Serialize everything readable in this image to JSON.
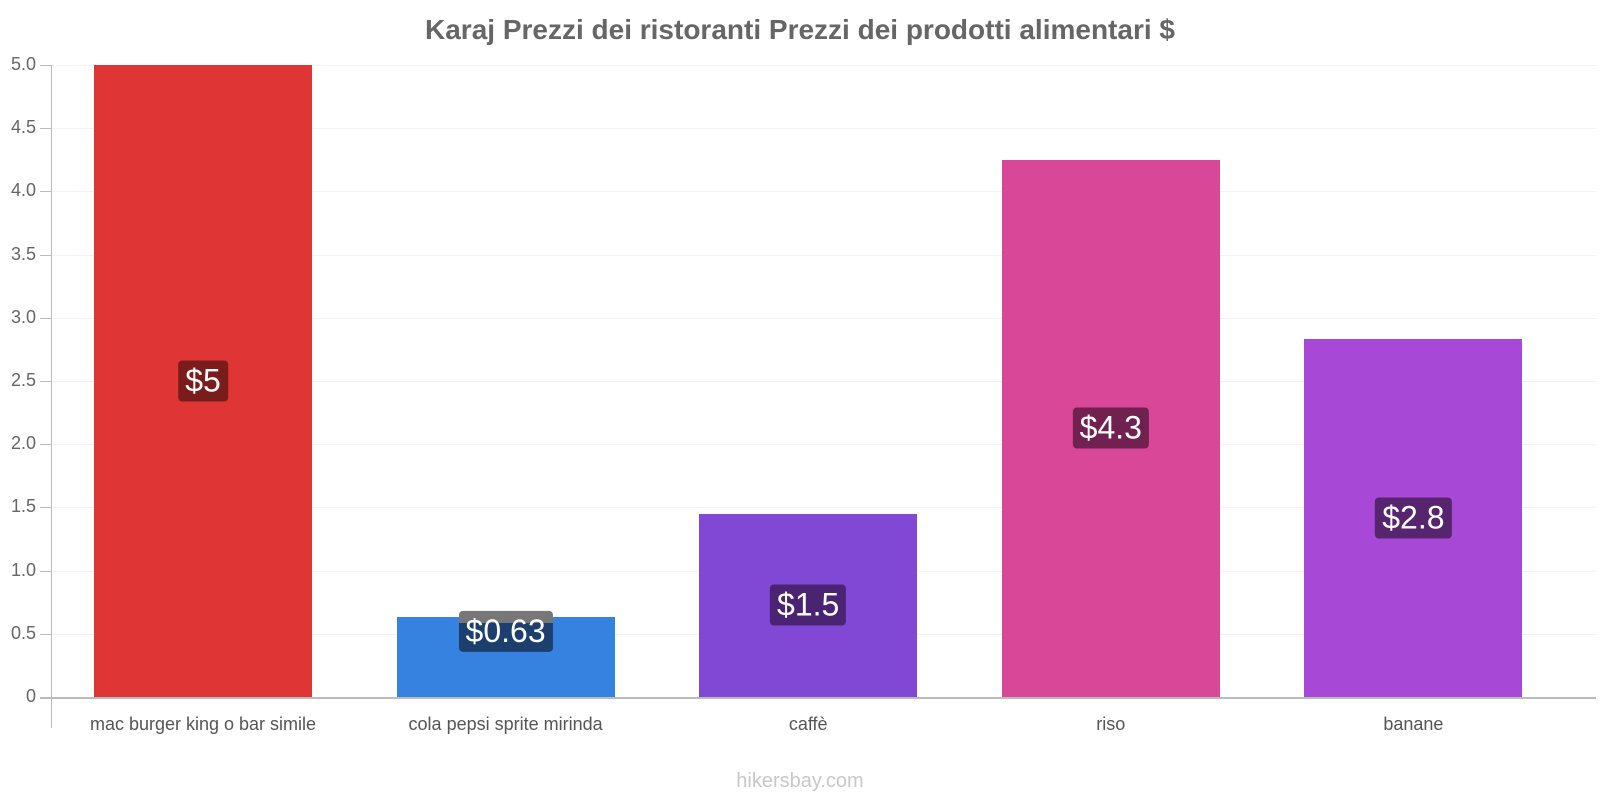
{
  "chart_data": {
    "type": "bar",
    "title": "Karaj Prezzi dei ristoranti Prezzi dei prodotti alimentari $",
    "xlabel": "",
    "ylabel": "",
    "ylim": [
      0,
      5
    ],
    "yticks": [
      "0",
      "0.5",
      "1.0",
      "1.5",
      "2.0",
      "2.5",
      "3.0",
      "3.5",
      "4.0",
      "4.5",
      "5.0"
    ],
    "grid": true,
    "legend": "none",
    "categories": [
      "mac burger king o bar simile",
      "cola pepsi sprite mirinda",
      "caffè",
      "riso",
      "banane"
    ],
    "values": [
      5.0,
      0.63,
      1.45,
      4.25,
      2.83
    ],
    "value_labels": [
      "$5",
      "$0.63",
      "$1.5",
      "$4.3",
      "$2.8"
    ],
    "colors": [
      "#e03535",
      "#3582e0",
      "#8148d6",
      "#d94799",
      "#a848d6"
    ],
    "label_colors": [
      "#7a1c1c",
      "#1d3f6e",
      "#4a2472",
      "#70214f",
      "#56256e"
    ]
  },
  "footer": "hikersbay.com"
}
